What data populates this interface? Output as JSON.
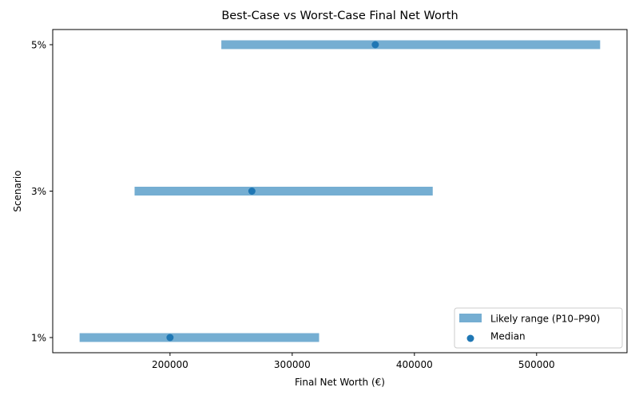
{
  "chart_data": {
    "type": "range-dot",
    "title": "Best-Case vs Worst-Case Final Net Worth",
    "xlabel": "Final Net Worth (€)",
    "ylabel": "Scenario",
    "categories": [
      "1%",
      "3%",
      "5%"
    ],
    "series": [
      {
        "name": "Likely range (P10–P90)",
        "kind": "range",
        "low": [
          126000,
          171000,
          242000
        ],
        "high": [
          322000,
          415000,
          552000
        ],
        "color": "#75aed2"
      },
      {
        "name": "Median",
        "kind": "scatter",
        "values": [
          200000,
          267000,
          368000
        ],
        "color": "#1f77b4"
      }
    ],
    "xlim": [
      104000,
      574000
    ],
    "xticks": [
      200000,
      300000,
      400000,
      500000
    ],
    "xtick_labels": [
      "200000",
      "300000",
      "400000",
      "500000"
    ],
    "grid": false,
    "legend_position": "lower right"
  },
  "legend": {
    "range_label": "Likely range (P10–P90)",
    "median_label": "Median"
  }
}
